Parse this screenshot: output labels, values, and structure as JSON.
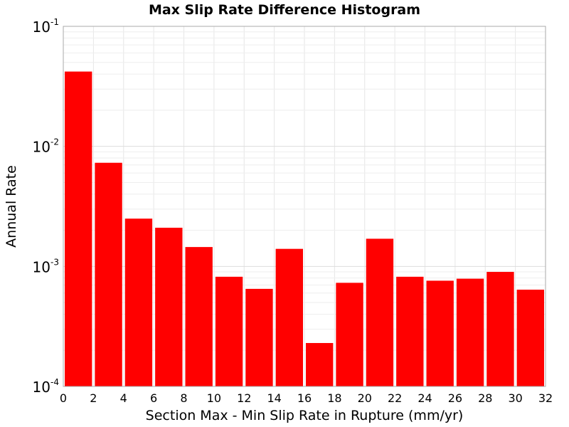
{
  "chart_data": {
    "type": "bar",
    "title": "Max Slip Rate Difference Histogram",
    "xlabel": "Section Max - Min Slip Rate in Rupture (mm/yr)",
    "ylabel": "Annual Rate",
    "xlim": [
      0,
      32
    ],
    "ylim": [
      0.0001,
      0.1
    ],
    "yscale": "log",
    "grid": true,
    "bar_color": "#ff0000",
    "bin_width": 2,
    "x_ticks": [
      "0",
      "2",
      "4",
      "6",
      "8",
      "10",
      "12",
      "14",
      "16",
      "18",
      "20",
      "22",
      "24",
      "26",
      "28",
      "30",
      "32"
    ],
    "y_ticks": [
      {
        "base": "10",
        "exp": "-4"
      },
      {
        "base": "10",
        "exp": "-3"
      },
      {
        "base": "10",
        "exp": "-2"
      },
      {
        "base": "10",
        "exp": "-1"
      }
    ],
    "bins": [
      {
        "x0": 0,
        "x1": 2,
        "value": 0.042
      },
      {
        "x0": 2,
        "x1": 4,
        "value": 0.0073
      },
      {
        "x0": 4,
        "x1": 6,
        "value": 0.0025
      },
      {
        "x0": 6,
        "x1": 8,
        "value": 0.0021
      },
      {
        "x0": 8,
        "x1": 10,
        "value": 0.00145
      },
      {
        "x0": 10,
        "x1": 12,
        "value": 0.00082
      },
      {
        "x0": 12,
        "x1": 14,
        "value": 0.00065
      },
      {
        "x0": 14,
        "x1": 16,
        "value": 0.0014
      },
      {
        "x0": 16,
        "x1": 18,
        "value": 0.00023
      },
      {
        "x0": 18,
        "x1": 20,
        "value": 0.00073
      },
      {
        "x0": 20,
        "x1": 22,
        "value": 0.0017
      },
      {
        "x0": 22,
        "x1": 24,
        "value": 0.00082
      },
      {
        "x0": 24,
        "x1": 26,
        "value": 0.00076
      },
      {
        "x0": 26,
        "x1": 28,
        "value": 0.00079
      },
      {
        "x0": 28,
        "x1": 30,
        "value": 0.0009
      },
      {
        "x0": 30,
        "x1": 32,
        "value": 0.00064
      }
    ]
  }
}
